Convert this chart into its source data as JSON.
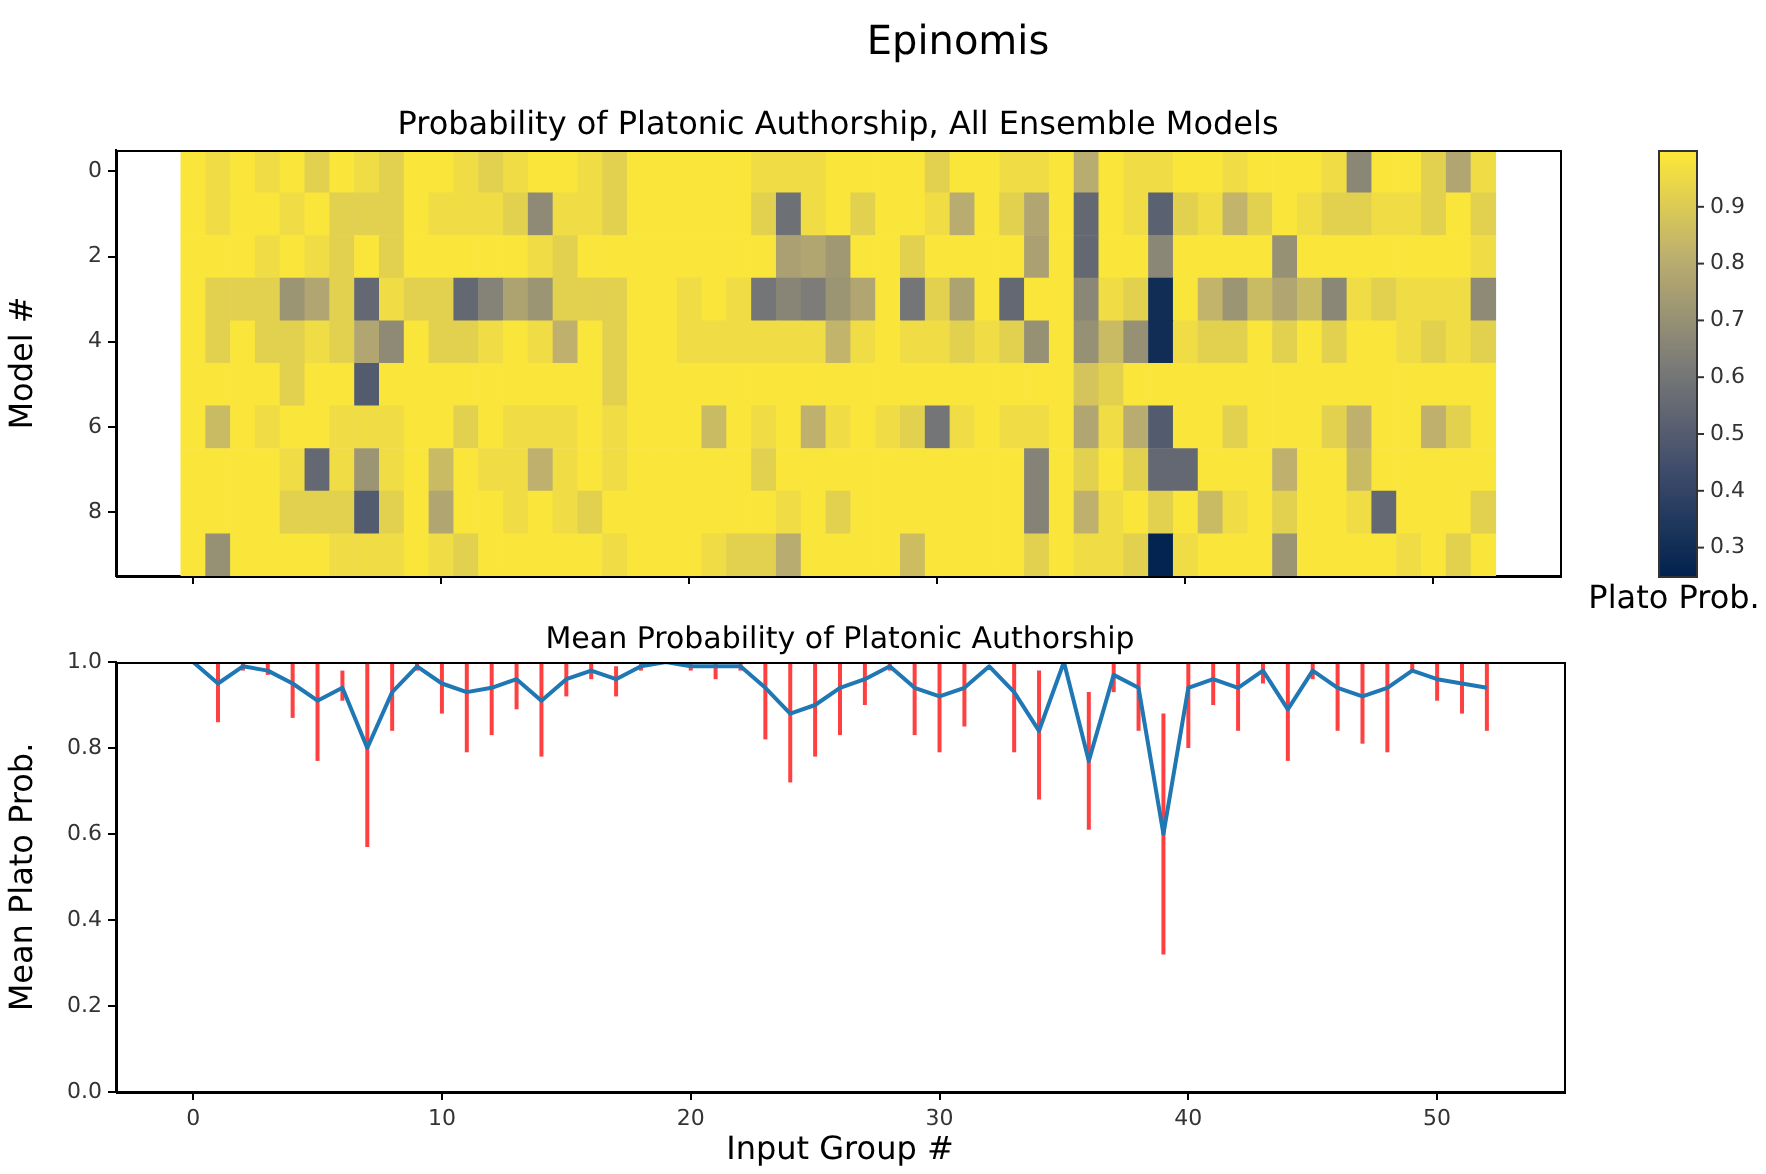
{
  "chart_data": [
    {
      "type": "heatmap",
      "title": "Epinomis",
      "subtitle": "Probability of Platonic Authorship, All Ensemble Models",
      "ylabel": "Model #",
      "clabel": "Plato Prob.",
      "categories": [
        null,
        null,
        null,
        null,
        null,
        null,
        null,
        null,
        null,
        null,
        null,
        null,
        null,
        null,
        null,
        null,
        null,
        null,
        null,
        null,
        null,
        null,
        null,
        null,
        null,
        null,
        null,
        null,
        null,
        null,
        null,
        null,
        null,
        null,
        null,
        null,
        null,
        null,
        null,
        null,
        null,
        null,
        null,
        null,
        null,
        null,
        null,
        null,
        null,
        null,
        null,
        null,
        null
      ],
      "y_categories": [
        "0",
        null,
        "2",
        null,
        "4",
        null,
        "6",
        null,
        "8",
        null
      ],
      "tick_labels": "y",
      "clim": [
        0.25,
        1.0
      ],
      "cticks": [
        0.3,
        0.4,
        0.5,
        0.6,
        0.7,
        0.8,
        0.9
      ],
      "cells": [
        [
          0.99,
          0.96,
          0.99,
          0.96,
          0.99,
          0.92,
          0.99,
          0.96,
          0.92,
          0.99,
          0.99,
          0.96,
          0.92,
          0.96,
          0.99,
          0.99,
          0.96,
          0.92,
          0.99,
          0.99,
          0.99,
          0.99,
          0.99,
          0.96,
          0.96,
          0.96,
          0.99,
          0.99,
          0.99,
          0.99,
          0.92,
          0.99,
          0.99,
          0.96,
          0.96,
          0.99,
          0.8,
          0.99,
          0.96,
          0.96,
          0.99,
          0.99,
          0.96,
          0.99,
          0.99,
          0.99,
          0.96,
          0.67,
          0.99,
          0.99,
          0.92,
          0.78,
          0.96
        ],
        [
          0.99,
          0.96,
          0.99,
          0.99,
          0.96,
          0.99,
          0.92,
          0.92,
          0.92,
          0.99,
          0.96,
          0.96,
          0.96,
          0.92,
          0.68,
          0.96,
          0.96,
          0.92,
          0.99,
          0.99,
          0.99,
          0.99,
          0.99,
          0.92,
          0.58,
          0.96,
          0.99,
          0.92,
          0.99,
          0.99,
          0.96,
          0.8,
          0.99,
          0.92,
          0.78,
          0.99,
          0.55,
          0.99,
          0.96,
          0.52,
          0.92,
          0.96,
          0.83,
          0.92,
          0.99,
          0.96,
          0.92,
          0.92,
          0.96,
          0.96,
          0.92,
          0.99,
          0.92
        ],
        [
          0.99,
          0.99,
          0.99,
          0.96,
          0.99,
          0.96,
          0.92,
          0.99,
          0.92,
          0.99,
          0.99,
          0.99,
          0.99,
          0.99,
          0.96,
          0.92,
          0.99,
          0.99,
          0.99,
          0.99,
          0.99,
          0.99,
          0.99,
          0.99,
          0.76,
          0.78,
          0.73,
          0.99,
          0.99,
          0.92,
          0.99,
          0.99,
          0.99,
          0.99,
          0.76,
          0.99,
          0.55,
          0.99,
          0.99,
          0.67,
          0.99,
          0.99,
          0.99,
          0.99,
          0.7,
          0.99,
          0.99,
          0.99,
          0.99,
          0.99,
          0.99,
          0.99,
          0.96
        ],
        [
          0.99,
          0.92,
          0.92,
          0.92,
          0.72,
          0.78,
          0.92,
          0.55,
          0.96,
          0.92,
          0.92,
          0.55,
          0.65,
          0.77,
          0.72,
          0.92,
          0.92,
          0.92,
          0.99,
          0.99,
          0.96,
          0.99,
          0.96,
          0.6,
          0.66,
          0.63,
          0.72,
          0.78,
          0.99,
          0.6,
          0.92,
          0.77,
          0.99,
          0.55,
          0.99,
          0.99,
          0.67,
          0.96,
          0.92,
          0.3,
          0.99,
          0.83,
          0.72,
          0.85,
          0.78,
          0.85,
          0.67,
          0.96,
          0.92,
          0.96,
          0.96,
          0.96,
          0.68
        ],
        [
          0.99,
          0.92,
          0.99,
          0.92,
          0.92,
          0.96,
          0.92,
          0.78,
          0.68,
          0.99,
          0.92,
          0.92,
          0.96,
          0.99,
          0.96,
          0.82,
          0.99,
          0.92,
          0.99,
          0.99,
          0.96,
          0.96,
          0.96,
          0.96,
          0.96,
          0.96,
          0.83,
          0.96,
          0.99,
          0.96,
          0.96,
          0.92,
          0.96,
          0.92,
          0.7,
          0.99,
          0.7,
          0.85,
          0.7,
          0.3,
          0.96,
          0.92,
          0.92,
          0.99,
          0.92,
          0.99,
          0.92,
          0.99,
          0.99,
          0.96,
          0.92,
          0.96,
          0.92
        ],
        [
          0.99,
          0.99,
          0.99,
          0.99,
          0.92,
          0.99,
          0.99,
          0.5,
          0.99,
          0.99,
          0.99,
          0.99,
          0.99,
          0.99,
          0.99,
          0.99,
          0.99,
          0.92,
          0.99,
          0.99,
          0.99,
          0.99,
          0.99,
          0.99,
          0.99,
          0.99,
          0.99,
          0.99,
          0.99,
          0.99,
          0.99,
          0.99,
          0.99,
          0.99,
          0.99,
          0.99,
          0.88,
          0.92,
          0.99,
          0.99,
          0.99,
          0.99,
          0.99,
          0.99,
          0.99,
          0.99,
          0.99,
          0.99,
          0.99,
          0.99,
          0.99,
          0.99,
          0.99
        ],
        [
          0.99,
          0.85,
          0.99,
          0.96,
          0.99,
          0.99,
          0.96,
          0.96,
          0.96,
          0.99,
          0.99,
          0.92,
          0.99,
          0.96,
          0.96,
          0.96,
          0.99,
          0.96,
          0.99,
          0.99,
          0.99,
          0.85,
          0.99,
          0.96,
          0.99,
          0.82,
          0.96,
          0.99,
          0.96,
          0.92,
          0.6,
          0.96,
          0.99,
          0.96,
          0.96,
          0.99,
          0.78,
          0.96,
          0.8,
          0.5,
          0.99,
          0.99,
          0.92,
          0.99,
          0.99,
          0.99,
          0.92,
          0.82,
          0.99,
          0.99,
          0.82,
          0.92,
          0.99
        ],
        [
          0.99,
          0.99,
          0.99,
          0.99,
          0.96,
          0.55,
          0.96,
          0.72,
          0.96,
          0.99,
          0.85,
          0.99,
          0.96,
          0.96,
          0.82,
          0.96,
          0.99,
          0.96,
          0.99,
          0.99,
          0.99,
          0.99,
          0.99,
          0.92,
          0.99,
          0.99,
          0.99,
          0.99,
          0.99,
          0.99,
          0.99,
          0.99,
          0.99,
          0.99,
          0.65,
          0.99,
          0.92,
          0.99,
          0.92,
          0.55,
          0.55,
          0.99,
          0.99,
          0.99,
          0.82,
          0.99,
          0.99,
          0.85,
          0.99,
          0.99,
          0.99,
          0.99,
          0.99
        ],
        [
          0.99,
          0.99,
          0.99,
          0.99,
          0.92,
          0.92,
          0.92,
          0.5,
          0.92,
          0.99,
          0.78,
          0.99,
          0.99,
          0.96,
          0.99,
          0.96,
          0.92,
          0.99,
          0.99,
          0.99,
          0.99,
          0.99,
          0.99,
          0.99,
          0.96,
          0.99,
          0.92,
          0.99,
          0.99,
          0.99,
          0.99,
          0.99,
          0.99,
          0.99,
          0.65,
          0.99,
          0.82,
          0.96,
          0.99,
          0.92,
          0.99,
          0.85,
          0.96,
          0.99,
          0.92,
          0.99,
          0.99,
          0.96,
          0.55,
          0.99,
          0.99,
          0.99,
          0.92
        ],
        [
          0.99,
          0.7,
          0.99,
          0.99,
          0.99,
          0.99,
          0.96,
          0.96,
          0.96,
          0.99,
          0.96,
          0.92,
          0.99,
          0.99,
          0.99,
          0.99,
          0.99,
          0.96,
          0.99,
          0.99,
          0.99,
          0.96,
          0.92,
          0.92,
          0.8,
          0.99,
          0.99,
          0.99,
          0.99,
          0.86,
          0.99,
          0.99,
          0.99,
          0.99,
          0.92,
          0.99,
          0.96,
          0.96,
          0.92,
          0.26,
          0.96,
          0.99,
          0.99,
          0.99,
          0.72,
          0.99,
          0.99,
          0.99,
          0.99,
          0.96,
          0.99,
          0.92,
          0.99
        ]
      ]
    },
    {
      "type": "line",
      "title": "Mean Probability of Platonic Authorship",
      "xlabel": "Input Group #",
      "ylabel": "Mean Plato Prob.",
      "x": [
        0,
        1,
        2,
        3,
        4,
        5,
        6,
        7,
        8,
        9,
        10,
        11,
        12,
        13,
        14,
        15,
        16,
        17,
        18,
        19,
        20,
        21,
        22,
        23,
        24,
        25,
        26,
        27,
        28,
        29,
        30,
        31,
        32,
        33,
        34,
        35,
        36,
        37,
        38,
        39,
        40,
        41,
        42,
        43,
        44,
        45,
        46,
        47,
        48,
        49,
        50,
        51,
        52
      ],
      "series": [
        {
          "color": "#1f77b4",
          "values": [
            1.0,
            0.95,
            0.99,
            0.98,
            0.95,
            0.91,
            0.94,
            0.8,
            0.93,
            0.99,
            0.95,
            0.93,
            0.94,
            0.96,
            0.91,
            0.96,
            0.98,
            0.96,
            0.99,
            1.0,
            0.99,
            0.99,
            0.99,
            0.94,
            0.88,
            0.9,
            0.94,
            0.96,
            0.99,
            0.94,
            0.92,
            0.94,
            0.99,
            0.93,
            0.84,
            1.0,
            0.77,
            0.97,
            0.94,
            0.6,
            0.94,
            0.96,
            0.94,
            0.98,
            0.89,
            0.98,
            0.94,
            0.92,
            0.94,
            0.98,
            0.96,
            0.95,
            0.94
          ],
          "errors": [
            null,
            [
              0.86,
              1
            ],
            [
              0.98,
              1
            ],
            [
              0.97,
              1
            ],
            [
              0.87,
              1
            ],
            [
              0.77,
              1
            ],
            [
              0.91,
              0.98
            ],
            [
              0.57,
              1
            ],
            [
              0.84,
              1
            ],
            [
              0.98,
              1
            ],
            [
              0.88,
              1
            ],
            [
              0.79,
              1
            ],
            [
              0.83,
              1
            ],
            [
              0.89,
              1
            ],
            [
              0.78,
              1
            ],
            [
              0.92,
              1
            ],
            [
              0.96,
              1
            ],
            [
              0.92,
              0.99
            ],
            [
              0.98,
              1
            ],
            null,
            [
              0.98,
              1
            ],
            [
              0.96,
              1
            ],
            [
              0.98,
              1
            ],
            [
              0.82,
              1
            ],
            [
              0.72,
              1
            ],
            [
              0.78,
              1
            ],
            [
              0.83,
              1
            ],
            [
              0.9,
              1
            ],
            [
              0.98,
              1
            ],
            [
              0.83,
              1
            ],
            [
              0.79,
              1
            ],
            [
              0.85,
              1
            ],
            null,
            [
              0.79,
              1
            ],
            [
              0.68,
              0.98
            ],
            null,
            [
              0.61,
              0.93
            ],
            [
              0.93,
              1
            ],
            [
              0.84,
              1
            ],
            [
              0.32,
              0.88
            ],
            [
              0.8,
              1
            ],
            [
              0.9,
              1
            ],
            [
              0.84,
              1
            ],
            [
              0.95,
              1
            ],
            [
              0.77,
              1
            ],
            [
              0.96,
              1
            ],
            [
              0.84,
              1
            ],
            [
              0.81,
              1
            ],
            [
              0.79,
              1
            ],
            [
              0.98,
              1
            ],
            [
              0.91,
              1
            ],
            [
              0.88,
              1
            ],
            [
              0.84,
              1
            ]
          ]
        }
      ],
      "xlim": [
        -3.1,
        55.1
      ],
      "xticks": [
        0,
        10,
        20,
        30,
        40,
        50
      ],
      "ylim": [
        0,
        1.0
      ],
      "yticks": [
        {
          "value": 0,
          "label": "0.0"
        },
        {
          "value": 0.2,
          "label": "0.2"
        },
        {
          "value": 0.4,
          "label": "0.4"
        },
        {
          "value": 0.6,
          "label": "0.6"
        },
        {
          "value": 0.8,
          "label": "0.8"
        },
        {
          "value": 1.0,
          "label": "1.0"
        }
      ],
      "marker": "none",
      "line_style": "solid"
    }
  ]
}
